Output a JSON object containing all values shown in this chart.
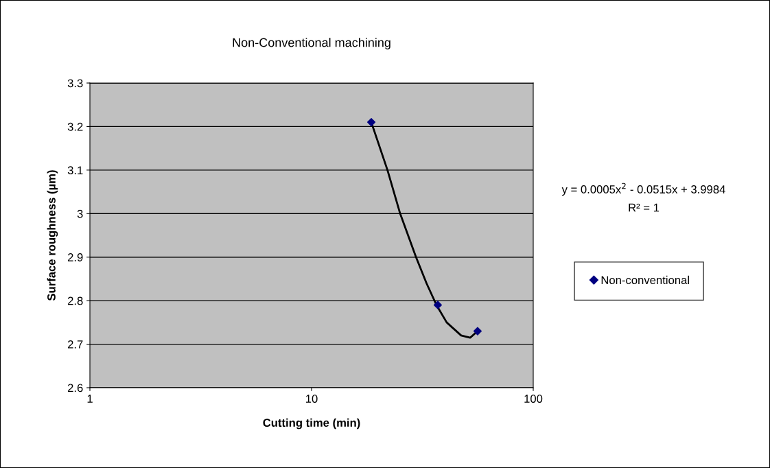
{
  "chart_data": {
    "type": "scatter",
    "title": "Non-Conventional machining",
    "xlabel": "Cutting time (min)",
    "ylabel": "Surface roughness (µm)",
    "log": "x",
    "xlim": [
      1,
      100
    ],
    "xticks": [
      1,
      10,
      100
    ],
    "ylim": [
      2.6,
      3.3
    ],
    "yticks": [
      2.6,
      2.7,
      2.8,
      2.9,
      {
        "value": 3.0,
        "label": "3"
      },
      3.1,
      3.2,
      3.3
    ],
    "grid": "y",
    "legend": "right",
    "marker": "diamond",
    "annotations": [
      "y = 0.0005x$^{2}$ - 0.0515x + 3.9984",
      "R² = 1"
    ],
    "series": [
      {
        "name": "Non-conventional",
        "color": "#000080",
        "x": [
          18.6,
          37.1,
          56.1
        ],
        "values": [
          3.21,
          2.79,
          2.73
        ]
      },
      {
        "type": "line",
        "color": "#000000",
        "marker": "none",
        "x": [
          18.6,
          22,
          25.1,
          29.6,
          33,
          36.6,
          40.7,
          47.3,
          52,
          56.1
        ],
        "values": [
          3.21,
          3.1,
          3.0,
          2.9,
          2.84,
          2.79,
          2.75,
          2.72,
          2.715,
          2.73
        ]
      }
    ]
  }
}
